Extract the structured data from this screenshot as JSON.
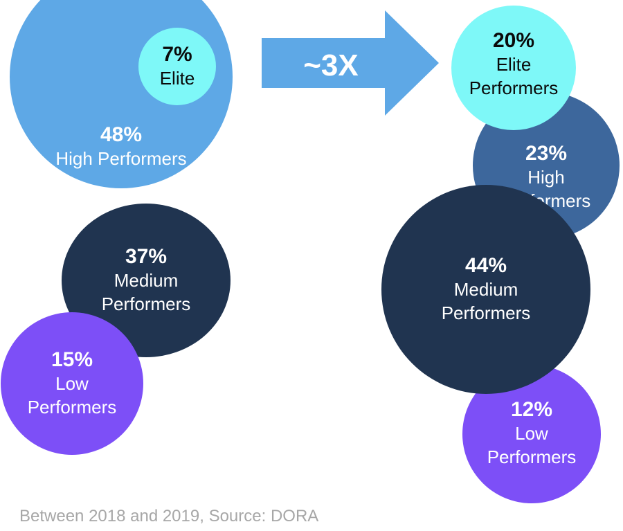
{
  "chart_data": {
    "type": "bubble",
    "title": "",
    "groups": [
      {
        "name": "before",
        "categories": [
          "High Performers",
          "Elite",
          "Medium Performers",
          "Low Performers"
        ],
        "values": [
          48,
          7,
          37,
          15
        ]
      },
      {
        "name": "after",
        "categories": [
          "Elite Performers",
          "High Performers",
          "Medium Performers",
          "Low Performers"
        ],
        "values": [
          20,
          23,
          44,
          12
        ]
      }
    ],
    "annotation": "~3X",
    "footnote": "Between 2018 and 2019, Source: DORA"
  },
  "left": {
    "high": {
      "pct": "48%",
      "label": "High Performers"
    },
    "elite": {
      "pct": "7%",
      "label": "Elite"
    },
    "medium": {
      "pct": "37%",
      "label1": "Medium",
      "label2": "Performers"
    },
    "low": {
      "pct": "15%",
      "label1": "Low",
      "label2": "Performers"
    }
  },
  "right": {
    "elite": {
      "pct": "20%",
      "label1": "Elite",
      "label2": "Performers"
    },
    "high": {
      "pct": "23%",
      "label1": "High",
      "label2": "Performers"
    },
    "medium": {
      "pct": "44%",
      "label1": "Medium",
      "label2": "Performers"
    },
    "low": {
      "pct": "12%",
      "label1": "Low",
      "label2": "Performers"
    }
  },
  "arrow": {
    "label": "~3X"
  },
  "footnote": "Between 2018 and 2019, Source: DORA",
  "colors": {
    "high_left": "#5ea8e6",
    "elite": "#7ef8f8",
    "medium": "#203450",
    "low": "#7d4ff7",
    "high_right": "#3d679c",
    "arrow": "#5ea8e6",
    "footnote": "#a7a7a7"
  }
}
